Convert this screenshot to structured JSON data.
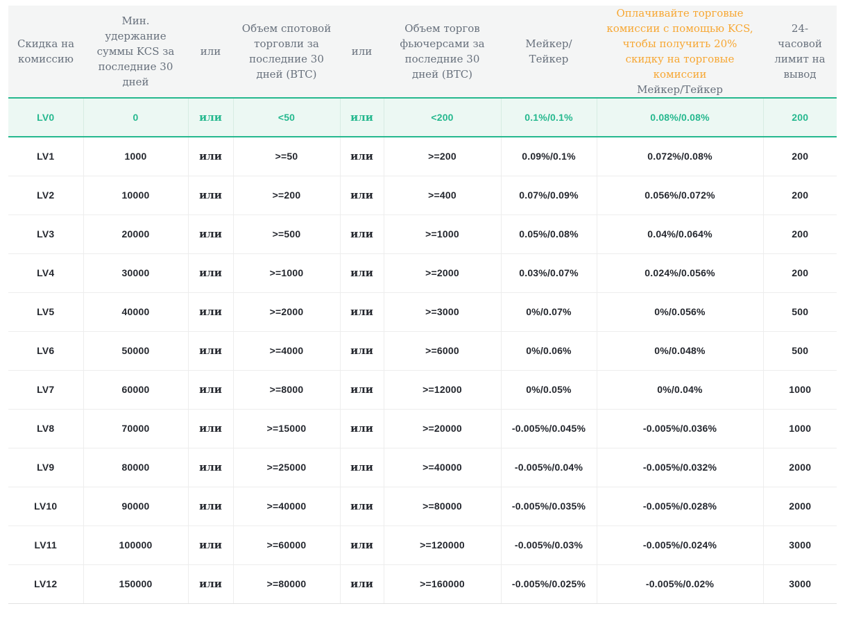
{
  "colors": {
    "accent_teal": "#25b88e",
    "highlight_row_bg": "#ecf8f3",
    "promo_orange": "#f7a733",
    "header_bg": "#f4f5f5",
    "header_text": "#67707c",
    "body_text": "#24272e",
    "grid_line": "#ededed"
  },
  "table": {
    "columns": [
      {
        "label": "Скидка на комиссию"
      },
      {
        "label": "Мин. удержание суммы KCS за последние 30 дней"
      },
      {
        "label": "или"
      },
      {
        "label": "Объем спотовой торговли за последние 30 дней (BTC)"
      },
      {
        "label": "или"
      },
      {
        "label": "Объем торгов фьючерсами за последние 30 дней (BTC)"
      },
      {
        "label": "Мейкер/Тейкер"
      },
      {
        "promo": "Оплачивайте торговые комиссии с помощью KCS, чтобы получить 20% скидку на торговые комиссии",
        "label": "Мейкер/Тейкер"
      },
      {
        "label": "24-часовой лимит на вывод"
      }
    ],
    "row_keys": [
      "level",
      "kcs",
      "or1",
      "spot",
      "or2",
      "futures",
      "maker_taker",
      "kcs_maker_taker",
      "limit"
    ],
    "rows": [
      {
        "highlighted": true,
        "level": "LV0",
        "kcs": "0",
        "or1": "или",
        "spot": "<50",
        "or2": "или",
        "futures": "<200",
        "maker_taker": "0.1%/0.1%",
        "kcs_maker_taker": "0.08%/0.08%",
        "limit": "200"
      },
      {
        "highlighted": false,
        "level": "LV1",
        "kcs": "1000",
        "or1": "или",
        "spot": ">=50",
        "or2": "или",
        "futures": ">=200",
        "maker_taker": "0.09%/0.1%",
        "kcs_maker_taker": "0.072%/0.08%",
        "limit": "200"
      },
      {
        "highlighted": false,
        "level": "LV2",
        "kcs": "10000",
        "or1": "или",
        "spot": ">=200",
        "or2": "или",
        "futures": ">=400",
        "maker_taker": "0.07%/0.09%",
        "kcs_maker_taker": "0.056%/0.072%",
        "limit": "200"
      },
      {
        "highlighted": false,
        "level": "LV3",
        "kcs": "20000",
        "or1": "или",
        "spot": ">=500",
        "or2": "или",
        "futures": ">=1000",
        "maker_taker": "0.05%/0.08%",
        "kcs_maker_taker": "0.04%/0.064%",
        "limit": "200"
      },
      {
        "highlighted": false,
        "level": "LV4",
        "kcs": "30000",
        "or1": "или",
        "spot": ">=1000",
        "or2": "или",
        "futures": ">=2000",
        "maker_taker": "0.03%/0.07%",
        "kcs_maker_taker": "0.024%/0.056%",
        "limit": "200"
      },
      {
        "highlighted": false,
        "level": "LV5",
        "kcs": "40000",
        "or1": "или",
        "spot": ">=2000",
        "or2": "или",
        "futures": ">=3000",
        "maker_taker": "0%/0.07%",
        "kcs_maker_taker": "0%/0.056%",
        "limit": "500"
      },
      {
        "highlighted": false,
        "level": "LV6",
        "kcs": "50000",
        "or1": "или",
        "spot": ">=4000",
        "or2": "или",
        "futures": ">=6000",
        "maker_taker": "0%/0.06%",
        "kcs_maker_taker": "0%/0.048%",
        "limit": "500"
      },
      {
        "highlighted": false,
        "level": "LV7",
        "kcs": "60000",
        "or1": "или",
        "spot": ">=8000",
        "or2": "или",
        "futures": ">=12000",
        "maker_taker": "0%/0.05%",
        "kcs_maker_taker": "0%/0.04%",
        "limit": "1000"
      },
      {
        "highlighted": false,
        "level": "LV8",
        "kcs": "70000",
        "or1": "или",
        "spot": ">=15000",
        "or2": "или",
        "futures": ">=20000",
        "maker_taker": "-0.005%/0.045%",
        "kcs_maker_taker": "-0.005%/0.036%",
        "limit": "1000"
      },
      {
        "highlighted": false,
        "level": "LV9",
        "kcs": "80000",
        "or1": "или",
        "spot": ">=25000",
        "or2": "или",
        "futures": ">=40000",
        "maker_taker": "-0.005%/0.04%",
        "kcs_maker_taker": "-0.005%/0.032%",
        "limit": "2000"
      },
      {
        "highlighted": false,
        "level": "LV10",
        "kcs": "90000",
        "or1": "или",
        "spot": ">=40000",
        "or2": "или",
        "futures": ">=80000",
        "maker_taker": "-0.005%/0.035%",
        "kcs_maker_taker": "-0.005%/0.028%",
        "limit": "2000"
      },
      {
        "highlighted": false,
        "level": "LV11",
        "kcs": "100000",
        "or1": "или",
        "spot": ">=60000",
        "or2": "или",
        "futures": ">=120000",
        "maker_taker": "-0.005%/0.03%",
        "kcs_maker_taker": "-0.005%/0.024%",
        "limit": "3000"
      },
      {
        "highlighted": false,
        "level": "LV12",
        "kcs": "150000",
        "or1": "или",
        "spot": ">=80000",
        "or2": "или",
        "futures": ">=160000",
        "maker_taker": "-0.005%/0.025%",
        "kcs_maker_taker": "-0.005%/0.02%",
        "limit": "3000"
      }
    ]
  }
}
